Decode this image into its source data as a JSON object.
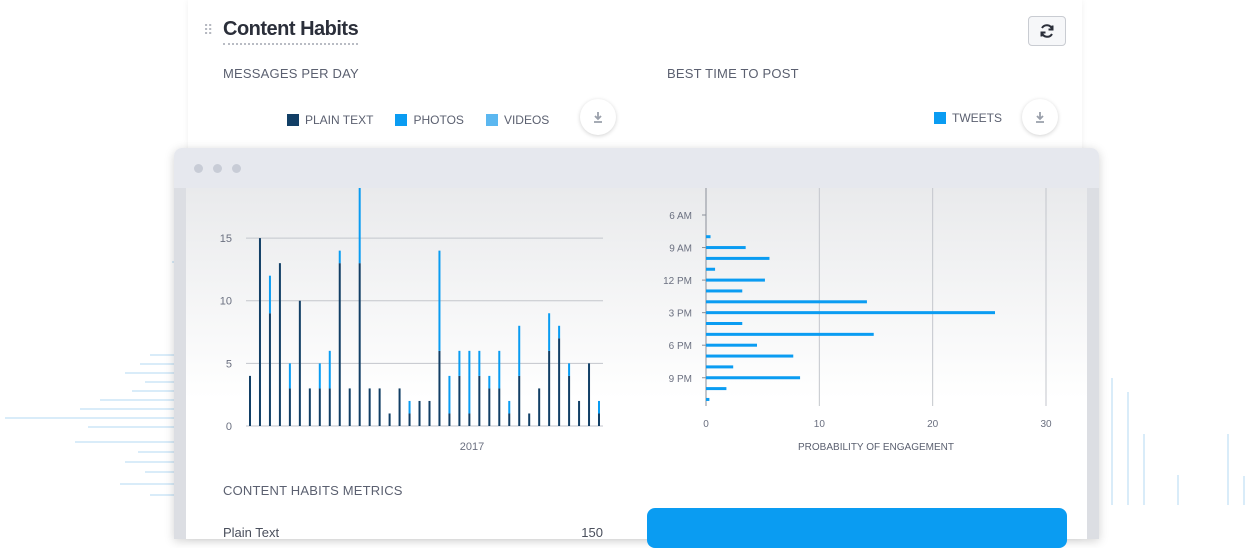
{
  "header": {
    "title": "Content Habits"
  },
  "sections": {
    "messages_per_day": "MESSAGES PER DAY",
    "best_time": "BEST TIME TO POST",
    "metrics": "CONTENT HABITS METRICS"
  },
  "legend_left": [
    {
      "label": "PLAIN TEXT",
      "color": "#123f66"
    },
    {
      "label": "PHOTOS",
      "color": "#0a9cf2"
    },
    {
      "label": "VIDEOS",
      "color": "#5bb7f0"
    }
  ],
  "legend_right": [
    {
      "label": "TWEETS",
      "color": "#0a9cf2"
    }
  ],
  "metrics": {
    "rows": [
      {
        "label": "Plain Text",
        "value": "150"
      }
    ]
  },
  "colors": {
    "accent": "#0a9cf2",
    "dark": "#123f66",
    "panel_bg": "#ffffff"
  },
  "icons": {
    "refresh": "refresh-icon",
    "download": "download-icon",
    "drag": "drag-handle-icon"
  },
  "chart_data": [
    {
      "type": "bar",
      "title": "MESSAGES PER DAY",
      "x_tick_labels": [
        "2017"
      ],
      "ylim": [
        0,
        19
      ],
      "yticks": [
        "0",
        "5",
        "10",
        "15"
      ],
      "grid": true,
      "legend": "top",
      "series": [
        {
          "name": "PLAIN TEXT",
          "values": [
            4,
            15,
            9,
            13,
            3,
            10,
            3,
            3,
            3,
            13,
            3,
            13,
            3,
            3,
            1,
            3,
            1,
            2,
            2,
            6,
            1,
            4,
            1,
            4,
            3,
            3,
            1,
            4,
            1,
            3,
            6,
            7,
            4,
            2,
            5,
            1
          ]
        },
        {
          "name": "PHOTOS",
          "values": [
            0,
            0,
            3,
            0,
            2,
            0,
            0,
            2,
            3,
            1,
            0,
            6,
            0,
            0,
            0,
            0,
            1,
            0,
            0,
            8,
            3,
            2,
            5,
            2,
            1,
            3,
            1,
            4,
            0,
            0,
            3,
            1,
            1,
            0,
            0,
            1
          ]
        }
      ]
    },
    {
      "type": "bar",
      "orientation": "horizontal",
      "xlabel": "PROBABILITY OF ENGAGEMENT",
      "xlim": [
        0,
        30
      ],
      "xticks": [
        "0",
        "10",
        "20",
        "30"
      ],
      "y_tick_labels": [
        "6 AM",
        "9 AM",
        "12 PM",
        "3 PM",
        "6 PM",
        "9 PM"
      ],
      "legend": "top-right",
      "series": [
        {
          "name": "TWEETS",
          "hours": [
            8,
            9,
            10,
            11,
            12,
            13,
            14,
            15,
            16,
            17,
            18,
            19,
            20,
            21,
            22,
            23
          ],
          "values": [
            0.4,
            3.5,
            5.6,
            0.8,
            5.2,
            3.2,
            14.2,
            25.5,
            3.2,
            14.8,
            4.5,
            7.7,
            2.4,
            8.3,
            1.8,
            0.3
          ]
        }
      ]
    }
  ]
}
